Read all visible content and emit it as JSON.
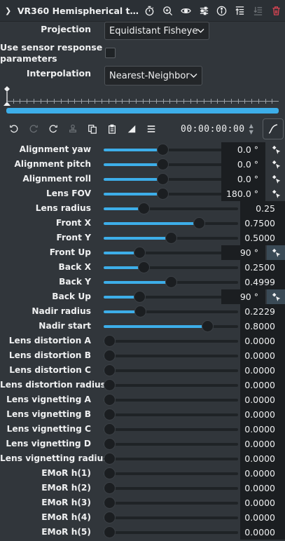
{
  "header": {
    "title": "VR360 Hemispherical to ...",
    "icons": [
      "collapse-chevron-icon",
      "timer-icon",
      "zoom-icon",
      "eye-icon",
      "settings-sliders-icon",
      "info-icon",
      "sort-icon",
      "move-down-icon",
      "delete-icon"
    ]
  },
  "projection": {
    "label": "Projection",
    "value": "Equidistant Fisheye"
  },
  "sensor": {
    "label_line1": "Use sensor response",
    "label_line2": "parameters",
    "checked": false
  },
  "interpolation": {
    "label": "Interpolation",
    "value": "Nearest-Neighbor"
  },
  "toolbar": {
    "timecode": "00:00:00:00"
  },
  "params": [
    {
      "label": "Alignment yaw",
      "value": "0.0 °",
      "level": 0.435,
      "keyframe": true
    },
    {
      "label": "Alignment pitch",
      "value": "0.0 °",
      "level": 0.435,
      "keyframe": true
    },
    {
      "label": "Alignment roll",
      "value": "0.0 °",
      "level": 0.435,
      "keyframe": true
    },
    {
      "label": "Lens FOV",
      "value": "180.0 °",
      "level": 0.435,
      "keyframe": true
    },
    {
      "label": "Lens radius",
      "value": "0.25",
      "level": 0.28,
      "keyframe": false
    },
    {
      "label": "Front X",
      "value": "0.7500",
      "level": 0.73,
      "keyframe": false
    },
    {
      "label": "Front Y",
      "value": "0.5000",
      "level": 0.5,
      "keyframe": false
    },
    {
      "label": "Front Up",
      "value": "90 °",
      "level": 0.245,
      "keyframe": true,
      "kfActive": true
    },
    {
      "label": "Back X",
      "value": "0.2500",
      "level": 0.28,
      "keyframe": false
    },
    {
      "label": "Back Y",
      "value": "0.4999",
      "level": 0.5,
      "keyframe": false
    },
    {
      "label": "Back Up",
      "value": "90 °",
      "level": 0.245,
      "keyframe": true,
      "kfActive": true
    },
    {
      "label": "Nadir radius",
      "value": "0.2229",
      "level": 0.25,
      "keyframe": false
    },
    {
      "label": "Nadir start",
      "value": "0.8000",
      "level": 0.8,
      "keyframe": false
    },
    {
      "label": "Lens distortion A",
      "value": "0.0000",
      "level": 0,
      "keyframe": false
    },
    {
      "label": "Lens distortion B",
      "value": "0.0000",
      "level": 0,
      "keyframe": false
    },
    {
      "label": "Lens distortion C",
      "value": "0.0000",
      "level": 0,
      "keyframe": false
    },
    {
      "label": "Lens distortion radius",
      "value": "0.0000",
      "level": 0,
      "keyframe": false
    },
    {
      "label": "Lens vignetting A",
      "value": "0.0000",
      "level": 0,
      "keyframe": false
    },
    {
      "label": "Lens vignetting B",
      "value": "0.0000",
      "level": 0,
      "keyframe": false
    },
    {
      "label": "Lens vignetting C",
      "value": "0.0000",
      "level": 0,
      "keyframe": false
    },
    {
      "label": "Lens vignetting D",
      "value": "0.0000",
      "level": 0,
      "keyframe": false
    },
    {
      "label": "Lens vignetting radius",
      "value": "0.0000",
      "level": 0,
      "keyframe": false
    },
    {
      "label": "EMoR h(1)",
      "value": "0.0000",
      "level": 0,
      "keyframe": false
    },
    {
      "label": "EMoR h(2)",
      "value": "0.0000",
      "level": 0,
      "keyframe": false
    },
    {
      "label": "EMoR h(3)",
      "value": "0.0000",
      "level": 0,
      "keyframe": false
    },
    {
      "label": "EMoR h(4)",
      "value": "0.0000",
      "level": 0,
      "keyframe": false
    },
    {
      "label": "EMoR h(5)",
      "value": "0.0000",
      "level": 0,
      "keyframe": false
    }
  ],
  "colors": {
    "accent": "#3daee9",
    "background": "#31363b",
    "delete": "#da4453"
  }
}
